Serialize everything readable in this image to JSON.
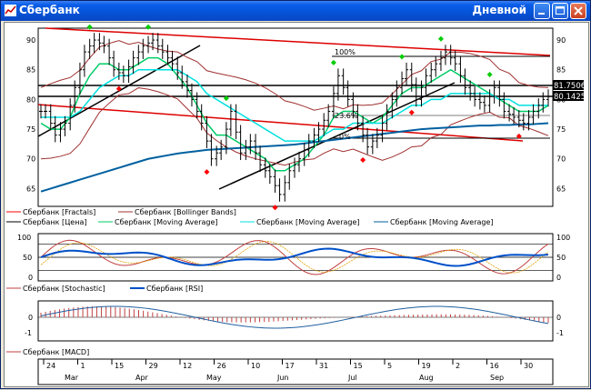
{
  "window": {
    "title": "Сбербанк",
    "timeframe": "Дневной"
  },
  "colors": {
    "titlebar": "#0a5ce8",
    "price": "#000000",
    "fractal": "#ff0000",
    "fractal_up": "#00cc00",
    "bollinger": "#a03030",
    "ma_fast": "#00cc66",
    "ma_mid": "#00e0e0",
    "ma_slow": "#0060a0",
    "stoch": "#c04040",
    "rsi": "#0050c8",
    "macd": "#c04040"
  },
  "price_panel": {
    "y_ticks": [
      "90",
      "85",
      "80",
      "75",
      "70",
      "65"
    ],
    "price_boxes": [
      "81.7506",
      "80.1425"
    ],
    "fib_labels": [
      "100%",
      "23.6%",
      "0%"
    ],
    "legend": [
      {
        "label": "Сбербанк [Fractals]",
        "color": "#ff0000"
      },
      {
        "label": "Сбербанк [Bollinger Bands]",
        "color": "#a03030"
      },
      {
        "label": "Сбербанк [Цена]",
        "color": "#000000"
      },
      {
        "label": "Сбербанк [Moving Average]",
        "color": "#00cc66"
      },
      {
        "label": "Сбербанк [Moving Average]",
        "color": "#00e0e0"
      },
      {
        "label": "Сбербанк [Moving Average]",
        "color": "#0060a0"
      }
    ]
  },
  "oscillator_panel": {
    "y_ticks": [
      "100",
      "50",
      "0"
    ],
    "legend": [
      {
        "label": "Сбербанк [Stochastic]",
        "color": "#c04040"
      },
      {
        "label": "Сбербанк [RSI]",
        "color": "#0050c8"
      }
    ]
  },
  "macd_panel": {
    "y_ticks": [
      "0",
      "-1"
    ],
    "legend": [
      {
        "label": "Сбербанк [MACD]",
        "color": "#c04040"
      }
    ]
  },
  "time_axis": {
    "days": [
      {
        "label": "24"
      },
      {
        "label": "1"
      },
      {
        "label": "15"
      },
      {
        "label": "29"
      },
      {
        "label": "12"
      },
      {
        "label": "26"
      },
      {
        "label": "10"
      },
      {
        "label": "17"
      },
      {
        "label": "31"
      },
      {
        "label": "15"
      },
      {
        "label": "5"
      },
      {
        "label": "19"
      },
      {
        "label": "2"
      },
      {
        "label": "16"
      },
      {
        "label": "30"
      }
    ],
    "months": [
      "Mar",
      "Apr",
      "May",
      "Jun",
      "Jul",
      "Aug",
      "Sep"
    ]
  },
  "chart_data": {
    "type": "line",
    "series": [
      {
        "name": "Сбербанк [Цена]",
        "values": [
          78,
          74,
          76,
          82,
          88,
          90,
          89,
          85,
          84,
          87,
          89,
          90,
          88,
          86,
          83,
          80,
          76,
          70,
          72,
          78,
          71,
          73,
          69,
          67,
          64,
          68,
          70,
          73,
          75,
          78,
          84,
          80,
          76,
          72,
          74,
          78,
          82,
          85,
          80,
          84,
          86,
          88,
          86,
          82,
          80,
          79,
          82,
          78,
          77,
          76,
          78,
          80,
          81
        ]
      },
      {
        "name": "Сбербанк [Moving Average]",
        "values": [
          76,
          75,
          75,
          77,
          81,
          84,
          86,
          86,
          85,
          85,
          86,
          87,
          87,
          86,
          84,
          82,
          79,
          76,
          74,
          74,
          73,
          72,
          71,
          70,
          68,
          68,
          69,
          70,
          72,
          74,
          77,
          78,
          78,
          77,
          76,
          77,
          79,
          81,
          82,
          82,
          83,
          84,
          85,
          84,
          83,
          82,
          81,
          80,
          79,
          78,
          78,
          78,
          79
        ]
      },
      {
        "name": "Сбербанк [Moving Average]",
        "values": [
          77,
          77,
          77,
          77,
          78,
          80,
          82,
          83,
          84,
          84,
          85,
          85,
          85,
          85,
          85,
          84,
          83,
          81,
          80,
          79,
          78,
          77,
          76,
          75,
          74,
          73,
          73,
          73,
          73,
          74,
          75,
          75,
          76,
          76,
          76,
          76,
          77,
          78,
          79,
          79,
          80,
          80,
          81,
          81,
          81,
          81,
          81,
          80,
          80,
          79,
          79,
          79,
          79
        ]
      },
      {
        "name": "Сбербанк [Moving Average]",
        "values": [
          64.5,
          65,
          65.5,
          66,
          66.5,
          67,
          67.5,
          68,
          68.5,
          69,
          69.5,
          70,
          70.3,
          70.6,
          70.9,
          71.1,
          71.3,
          71.5,
          71.6,
          71.7,
          71.8,
          71.9,
          72,
          72.1,
          72.2,
          72.3,
          72.4,
          72.6,
          72.8,
          73,
          73.2,
          73.4,
          73.6,
          73.8,
          74,
          74.2,
          74.4,
          74.6,
          74.8,
          75,
          75.1,
          75.2,
          75.3,
          75.4,
          75.5,
          75.6,
          75.6,
          75.7,
          75.7,
          75.8,
          75.8,
          75.9,
          76
        ]
      }
    ],
    "ylim": [
      62,
      92
    ]
  }
}
